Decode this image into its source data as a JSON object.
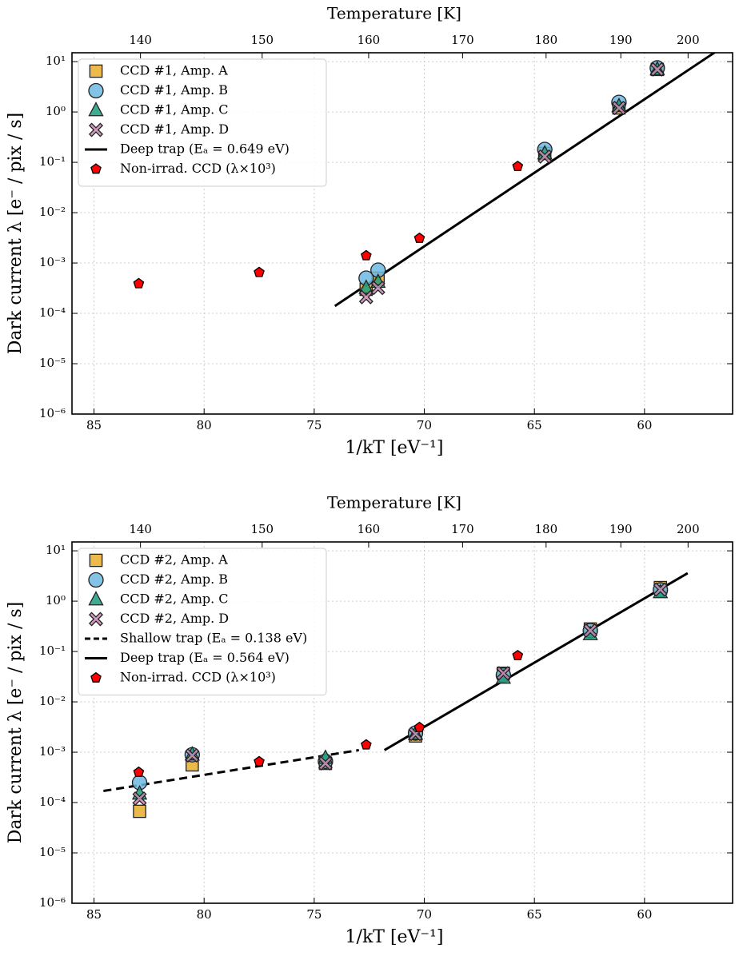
{
  "chart_data": [
    {
      "type": "scatter",
      "x2label": "Temperature [K]",
      "xlabel": "1/kT  [eV⁻¹]",
      "ylabel": "Dark current λ  [e⁻ / pix / s]",
      "xlim": [
        86,
        56
      ],
      "ylim": [
        1e-06,
        15
      ],
      "log_y": true,
      "grid": true,
      "legend": "upper left",
      "xticks": [
        85,
        80,
        75,
        70,
        65,
        60
      ],
      "x2ticks": [
        140,
        150,
        160,
        170,
        180,
        190,
        200
      ],
      "yticks": [
        {
          "value": 1e-06,
          "label": "10⁻⁶"
        },
        {
          "value": 1e-05,
          "label": "10⁻⁵"
        },
        {
          "value": 0.0001,
          "label": "10⁻⁴"
        },
        {
          "value": 0.001,
          "label": "10⁻³"
        },
        {
          "value": 0.01,
          "label": "10⁻²"
        },
        {
          "value": 0.1,
          "label": "10⁻¹"
        },
        {
          "value": 1,
          "label": "10⁰"
        },
        {
          "value": 10,
          "label": "10¹"
        }
      ],
      "series": [
        {
          "name": "CCD #1, Amp. A",
          "color": "#e9ae2c",
          "marker": "square",
          "x": [
            72.64,
            72.1,
            64.53,
            61.16,
            59.42
          ],
          "values": [
            0.0003,
            0.0005,
            0.15,
            1.2,
            7
          ]
        },
        {
          "name": "CCD #1, Amp. B",
          "color": "#6cb8e2",
          "marker": "circle",
          "x": [
            72.64,
            72.1,
            64.53,
            61.16,
            59.42
          ],
          "values": [
            0.0005,
            0.00072,
            0.18,
            1.55,
            7.5
          ]
        },
        {
          "name": "CCD #1, Amp. C",
          "color": "#1f9e7b",
          "marker": "triangle",
          "x": [
            72.64,
            72.1,
            64.53,
            61.16,
            59.42
          ],
          "values": [
            0.00032,
            0.00042,
            0.15,
            1.3,
            7
          ]
        },
        {
          "name": "CCD #1, Amp. D",
          "color": "#c98ab3",
          "marker": "x",
          "x": [
            72.64,
            72.1,
            64.53,
            61.16,
            59.42
          ],
          "values": [
            0.00021,
            0.00032,
            0.13,
            1.2,
            7
          ]
        },
        {
          "name": "Deep trap (Eₐ = 0.649 eV)",
          "color": "#000000",
          "style": "solid",
          "x": [
            74.06,
            56.74
          ],
          "values": [
            0.00014,
            16
          ]
        },
        {
          "name": "Non-irrad. CCD (λ×10³)",
          "color": "#ff0000",
          "marker": "pentagon",
          "x": [
            82.97,
            77.5,
            72.64,
            70.22,
            65.76
          ],
          "values": [
            0.00039,
            0.00065,
            0.0014,
            0.0031,
            0.083
          ]
        }
      ]
    },
    {
      "type": "scatter",
      "x2label": "Temperature [K]",
      "xlabel": "1/kT  [eV⁻¹]",
      "ylabel": "Dark current λ  [e⁻ / pix / s]",
      "xlim": [
        86,
        56
      ],
      "ylim": [
        1e-06,
        15
      ],
      "log_y": true,
      "grid": true,
      "legend": "upper left",
      "xticks": [
        85,
        80,
        75,
        70,
        65,
        60
      ],
      "x2ticks": [
        140,
        150,
        160,
        170,
        180,
        190,
        200
      ],
      "yticks": [
        {
          "value": 1e-06,
          "label": "10⁻⁶"
        },
        {
          "value": 1e-05,
          "label": "10⁻⁵"
        },
        {
          "value": 0.0001,
          "label": "10⁻⁴"
        },
        {
          "value": 0.001,
          "label": "10⁻³"
        },
        {
          "value": 0.01,
          "label": "10⁻²"
        },
        {
          "value": 0.1,
          "label": "10⁻¹"
        },
        {
          "value": 1,
          "label": "10⁰"
        },
        {
          "value": 10,
          "label": "10¹"
        }
      ],
      "series": [
        {
          "name": "CCD #2, Amp. A",
          "color": "#e9ae2c",
          "marker": "square",
          "x": [
            82.93,
            80.54,
            74.49,
            70.4,
            66.41,
            62.46,
            59.28
          ],
          "values": [
            6.7e-05,
            0.00056,
            0.0006,
            0.0021,
            0.037,
            0.28,
            1.86
          ]
        },
        {
          "name": "CCD #2, Amp. B",
          "color": "#6cb8e2",
          "marker": "circle",
          "x": [
            82.93,
            80.54,
            74.49,
            70.4,
            66.41,
            62.46,
            59.28
          ],
          "values": [
            0.00025,
            0.00089,
            0.00066,
            0.0024,
            0.034,
            0.26,
            1.67
          ]
        },
        {
          "name": "CCD #2, Amp. C",
          "color": "#1f9e7b",
          "marker": "triangle",
          "x": [
            82.93,
            80.54,
            74.49,
            70.4,
            66.41,
            62.46,
            59.28
          ],
          "values": [
            0.00015,
            0.0009,
            0.00077,
            0.0023,
            0.03,
            0.22,
            1.5
          ]
        },
        {
          "name": "CCD #2, Amp. D",
          "color": "#c98ab3",
          "marker": "x",
          "x": [
            82.93,
            80.54,
            74.49,
            70.4,
            66.41,
            62.46,
            59.28
          ],
          "values": [
            0.00012,
            0.00086,
            0.0006,
            0.0023,
            0.037,
            0.26,
            1.7
          ]
        },
        {
          "name": "Shallow trap (Eₐ = 0.138 eV)",
          "color": "#000000",
          "style": "dashed",
          "x": [
            84.57,
            72.97
          ],
          "values": [
            0.00017,
            0.0011
          ]
        },
        {
          "name": "Deep trap (Eₐ = 0.564 eV)",
          "color": "#000000",
          "style": "solid",
          "x": [
            71.81,
            58.04
          ],
          "values": [
            0.0011,
            3.6
          ]
        },
        {
          "name": "Non-irrad. CCD (λ×10³)",
          "color": "#ff0000",
          "marker": "pentagon",
          "x": [
            82.97,
            77.5,
            72.64,
            70.22,
            65.76
          ],
          "values": [
            0.0004,
            0.00065,
            0.0014,
            0.0031,
            0.083
          ]
        }
      ]
    }
  ]
}
